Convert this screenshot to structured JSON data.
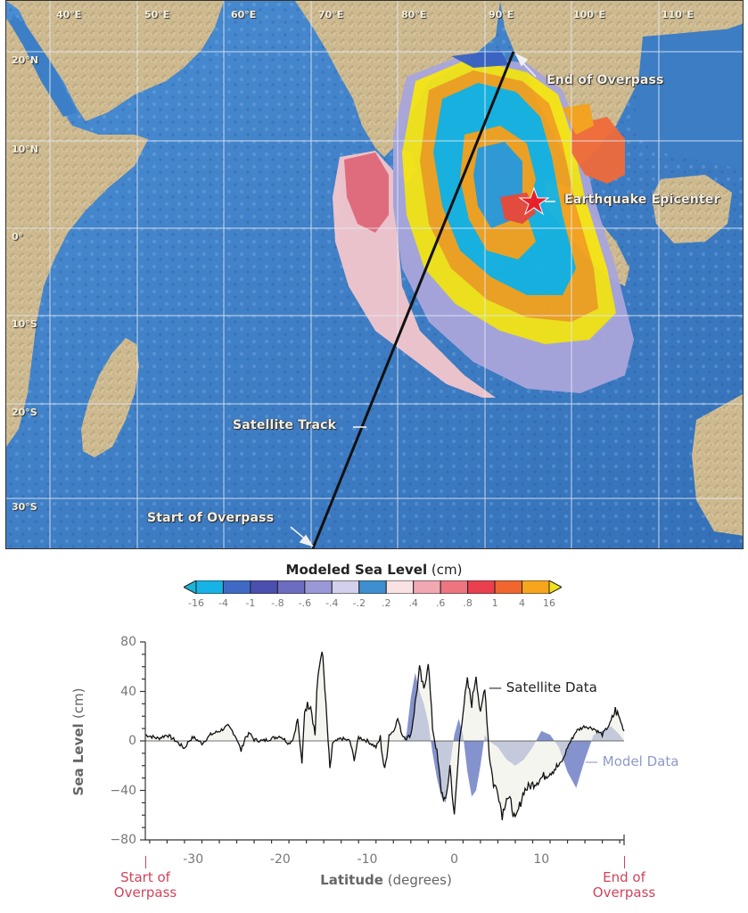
{
  "map": {
    "longitude_labels": [
      "40°E",
      "50°E",
      "60°E",
      "70°E",
      "80°E",
      "90°E",
      "100°E",
      "110°E"
    ],
    "latitude_labels": [
      "20°N",
      "10°N",
      "0°",
      "10°S",
      "20°S",
      "30°S"
    ],
    "annotations": {
      "end_of_overpass": "End of Overpass",
      "earthquake_epicenter": "Earthquake Epicenter",
      "satellite_track": "Satellite Track",
      "start_of_overpass": "Start of Overpass"
    },
    "colors": {
      "land": "#c8b48a",
      "ocean": "#3f7fc6",
      "grid": "#e8eef5",
      "track": "#111111",
      "epicenter": "#e8202a"
    }
  },
  "colorbar": {
    "title": "Modeled Sea Level",
    "unit": "(cm)",
    "ticks": [
      "-16",
      "-4",
      "-1",
      "-.8",
      "-.6",
      "-.4",
      "-.2",
      ".2",
      ".4",
      ".6",
      ".8",
      "1",
      "4",
      "16"
    ],
    "bins": [
      "#17b3e6",
      "#3f69c4",
      "#4a4fb0",
      "#6d6dc0",
      "#9a98d6",
      "#d2d0ea",
      "#3e8fcf",
      "#f9e1e4",
      "#f2a8b2",
      "#ee7580",
      "#ea3f4c",
      "#f0662e",
      "#f6a51c"
    ],
    "under_color": "#19b4d8",
    "over_color": "#f2e21a"
  },
  "chart_data": {
    "type": "line",
    "title": "",
    "xlabel": "Latitude (degrees)",
    "xlabel_bold": "Latitude",
    "xlabel_unit": "(degrees)",
    "ylabel": "Sea Level (cm)",
    "ylabel_bold": "Sea Level",
    "ylabel_unit": "(cm)",
    "xlim": [
      -35.5,
      19.5
    ],
    "ylim": [
      -80,
      80
    ],
    "xticks": [
      -30,
      -20,
      -10,
      0,
      10
    ],
    "xtick_labels": [
      "-30",
      "-20",
      "-10",
      "0",
      "10"
    ],
    "yticks": [
      80,
      40,
      0,
      -40,
      -80
    ],
    "ytick_labels": [
      "80",
      "40",
      "0",
      "−40",
      "−80"
    ],
    "grid": false,
    "legend_position": "inline-right",
    "annotations": [
      {
        "text": "Start of Overpass",
        "x": -35.5,
        "color": "#d0445a"
      },
      {
        "text": "End of Overpass",
        "x": 19.5,
        "color": "#d0445a"
      }
    ],
    "series": [
      {
        "name": "Satellite Data",
        "color": "#111111",
        "x": [
          -35.5,
          -34,
          -33,
          -32,
          -31,
          -30.5,
          -30,
          -29,
          -28,
          -27,
          -26,
          -25.5,
          -25,
          -24.5,
          -24,
          -23.5,
          -23,
          -22,
          -21,
          -20,
          -19,
          -18.5,
          -18,
          -17.5,
          -17.2,
          -17,
          -16.5,
          -16,
          -15.8,
          -15.5,
          -15.2,
          -15,
          -14.5,
          -14.3,
          -14,
          -13,
          -12,
          -11.5,
          -11,
          -10,
          -9,
          -8.5,
          -8,
          -7.5,
          -7,
          -6.5,
          -6,
          -5.5,
          -5,
          -4.5,
          -4,
          -3.5,
          -3,
          -2.5,
          -2,
          -1.5,
          -1,
          -0.5,
          0,
          0.3,
          0.6,
          1,
          1.5,
          2,
          2.5,
          3,
          3.5,
          4,
          4.5,
          5,
          5.5,
          6,
          6.5,
          7,
          8,
          9,
          10,
          11,
          12,
          12.5,
          13,
          14,
          15,
          16,
          17,
          18,
          18.5,
          19,
          19.5
        ],
        "values": [
          5,
          2,
          5,
          0,
          -6,
          0,
          3,
          -2,
          5,
          8,
          12,
          8,
          2,
          -8,
          3,
          6,
          1,
          0,
          2,
          4,
          -2,
          2,
          18,
          -20,
          25,
          28,
          30,
          5,
          40,
          60,
          75,
          55,
          0,
          -25,
          -2,
          2,
          0,
          -15,
          3,
          0,
          -5,
          2,
          -25,
          5,
          8,
          18,
          5,
          2,
          5,
          30,
          58,
          40,
          65,
          10,
          -10,
          -40,
          -50,
          -20,
          -62,
          -30,
          0,
          25,
          48,
          30,
          54,
          20,
          45,
          -10,
          -35,
          -40,
          -60,
          -45,
          -50,
          -65,
          -40,
          -35,
          -30,
          -25,
          -20,
          -15,
          -5,
          8,
          12,
          10,
          5,
          15,
          25,
          18,
          8
        ]
      },
      {
        "name": "Model Data",
        "color": "#6f80c4",
        "x": [
          -35.5,
          -6,
          -5.5,
          -5,
          -4.5,
          -4,
          -3.5,
          -3,
          -2.5,
          -2,
          -1.5,
          -1,
          -0.5,
          0,
          0.5,
          1,
          1.5,
          2,
          2.5,
          3,
          3.5,
          4,
          5,
          6,
          7,
          8,
          9,
          10,
          11,
          12,
          13,
          14,
          15,
          16,
          17,
          18,
          19,
          19.5
        ],
        "values": [
          0,
          0,
          5,
          35,
          55,
          40,
          30,
          15,
          -10,
          -30,
          -45,
          -50,
          -20,
          5,
          18,
          5,
          -25,
          -45,
          -40,
          -20,
          5,
          0,
          -5,
          -15,
          -20,
          -15,
          -5,
          8,
          5,
          -5,
          -25,
          -38,
          -15,
          5,
          8,
          12,
          5,
          0
        ]
      }
    ]
  }
}
